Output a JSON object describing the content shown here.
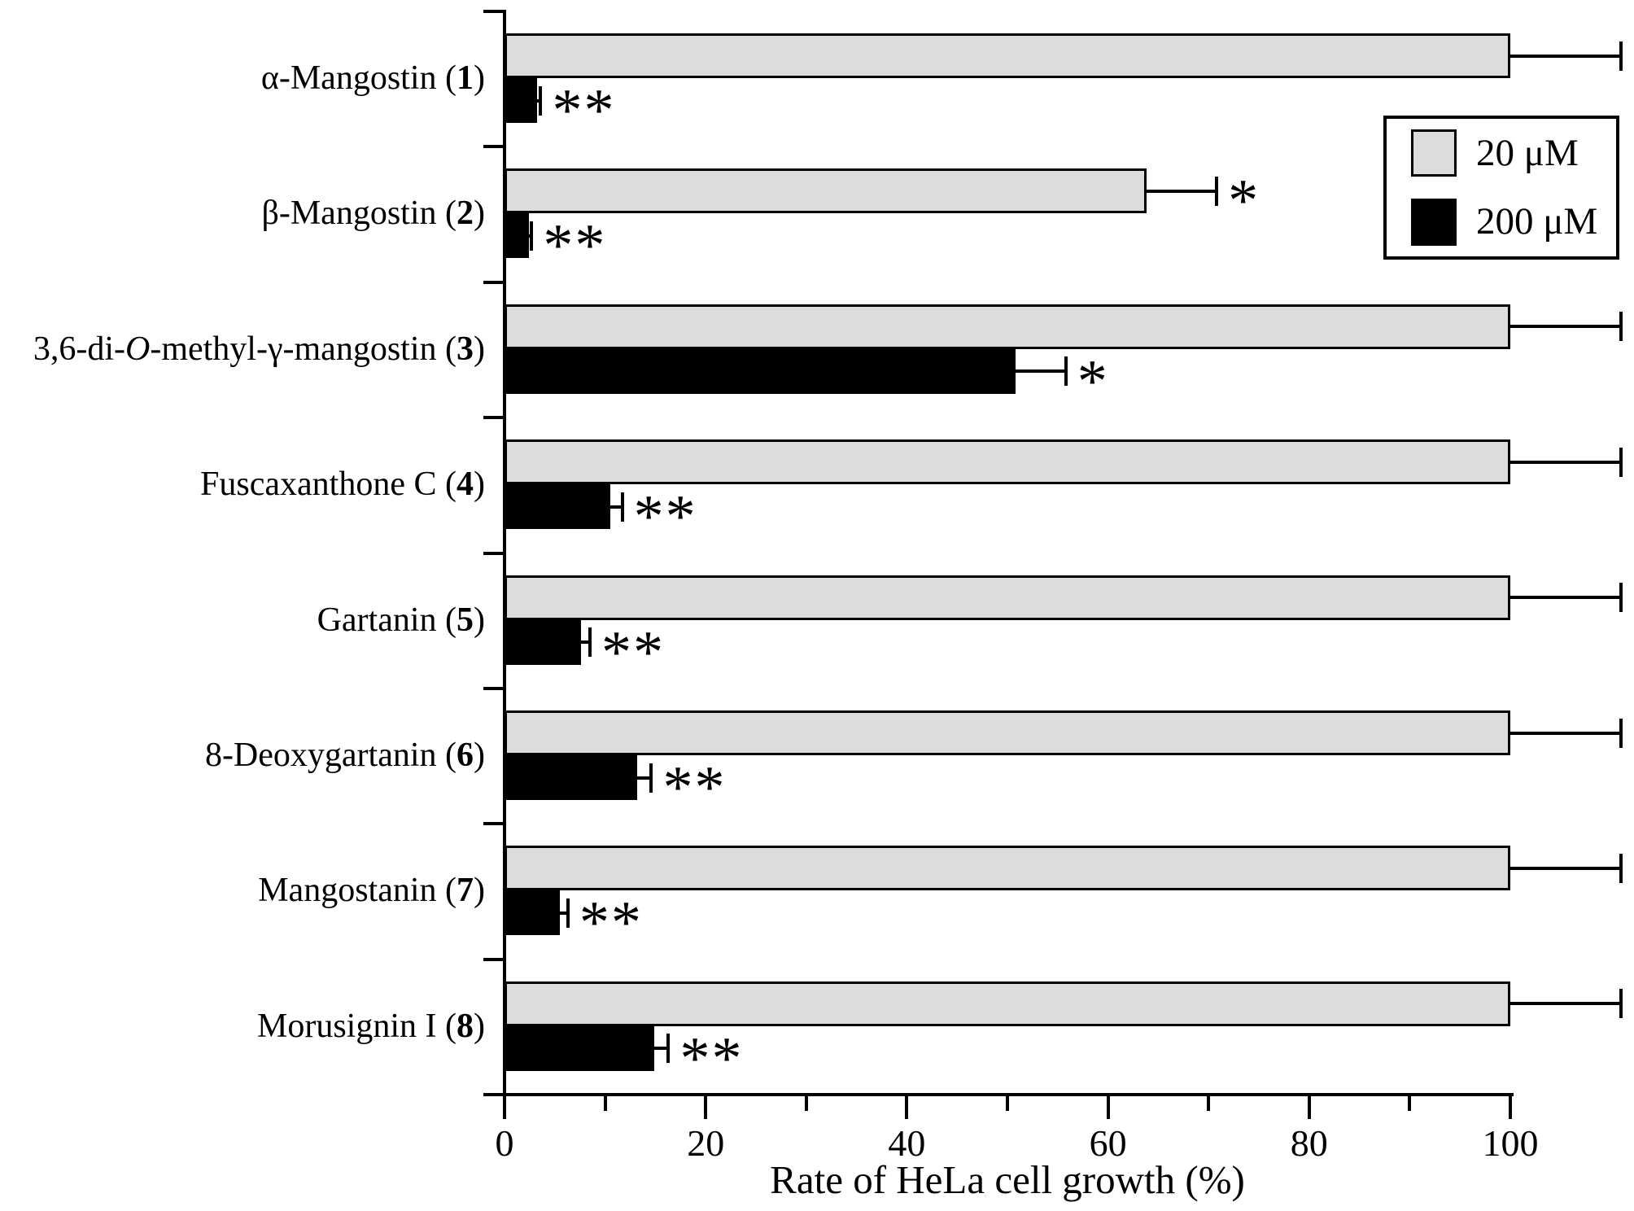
{
  "chart_data": {
    "type": "bar",
    "orientation": "horizontal",
    "title": "",
    "xlabel": "Rate of HeLa cell growth (%)",
    "ylabel": "",
    "xlim": [
      0,
      112
    ],
    "xticks": [
      0,
      20,
      40,
      60,
      80,
      100
    ],
    "xticks_minor": [
      10,
      30,
      50,
      70,
      90
    ],
    "grid": false,
    "legend_position": "top-right",
    "background_color": "#ffffff",
    "axis_color": "#000000",
    "legend": {
      "entries": [
        {
          "label": "20 μM",
          "color": "#dcdcdc"
        },
        {
          "label": "200 μM",
          "color": "#000000"
        }
      ]
    },
    "categories": [
      {
        "label": "α-Mangostin (1)",
        "segments": [
          {
            "t": "α-Mangostin ("
          },
          {
            "t": "1",
            "b": true
          },
          {
            "t": ")"
          }
        ]
      },
      {
        "label": "β-Mangostin (2)",
        "segments": [
          {
            "t": "β-Mangostin ("
          },
          {
            "t": "2",
            "b": true
          },
          {
            "t": ")"
          }
        ]
      },
      {
        "label": "3,6-di-O-methyl-γ-mangostin (3)",
        "segments": [
          {
            "t": "3,6-di-"
          },
          {
            "t": "O",
            "i": true
          },
          {
            "t": "-methyl-γ-mangostin ("
          },
          {
            "t": "3",
            "b": true
          },
          {
            "t": ")"
          }
        ]
      },
      {
        "label": "Fuscaxanthone C (4)",
        "segments": [
          {
            "t": "Fuscaxanthone C ("
          },
          {
            "t": "4",
            "b": true
          },
          {
            "t": ")"
          }
        ]
      },
      {
        "label": "Gartanin (5)",
        "segments": [
          {
            "t": "Gartanin ("
          },
          {
            "t": "5",
            "b": true
          },
          {
            "t": ")"
          }
        ]
      },
      {
        "label": "8-Deoxygartanin (6)",
        "segments": [
          {
            "t": "8-Deoxygartanin ("
          },
          {
            "t": "6",
            "b": true
          },
          {
            "t": ")"
          }
        ]
      },
      {
        "label": "Mangostanin (7)",
        "segments": [
          {
            "t": "Mangostanin ("
          },
          {
            "t": "7",
            "b": true
          },
          {
            "t": ")"
          }
        ]
      },
      {
        "label": "Morusignin I (8)",
        "segments": [
          {
            "t": "Morusignin I ("
          },
          {
            "t": "8",
            "b": true
          },
          {
            "t": ")"
          }
        ]
      }
    ],
    "series": [
      {
        "name": "20 μM",
        "color": "#dcdcdc",
        "values": [
          100,
          63.8,
          100,
          100,
          100,
          100,
          100,
          100
        ],
        "errors": [
          11,
          7,
          11,
          11,
          11,
          11,
          11,
          11
        ],
        "sig_markers": [
          "",
          "*",
          "",
          "",
          "",
          "",
          "",
          ""
        ]
      },
      {
        "name": "200 μM",
        "color": "#000000",
        "values": [
          3.2,
          2.4,
          50.8,
          10.5,
          7.6,
          13.2,
          5.5,
          14.9
        ],
        "errors": [
          0.4,
          0.3,
          5,
          1.2,
          0.9,
          1.4,
          0.8,
          1.4
        ],
        "sig_markers": [
          "**",
          "**",
          "*",
          "**",
          "**",
          "**",
          "**",
          "**"
        ]
      }
    ]
  }
}
